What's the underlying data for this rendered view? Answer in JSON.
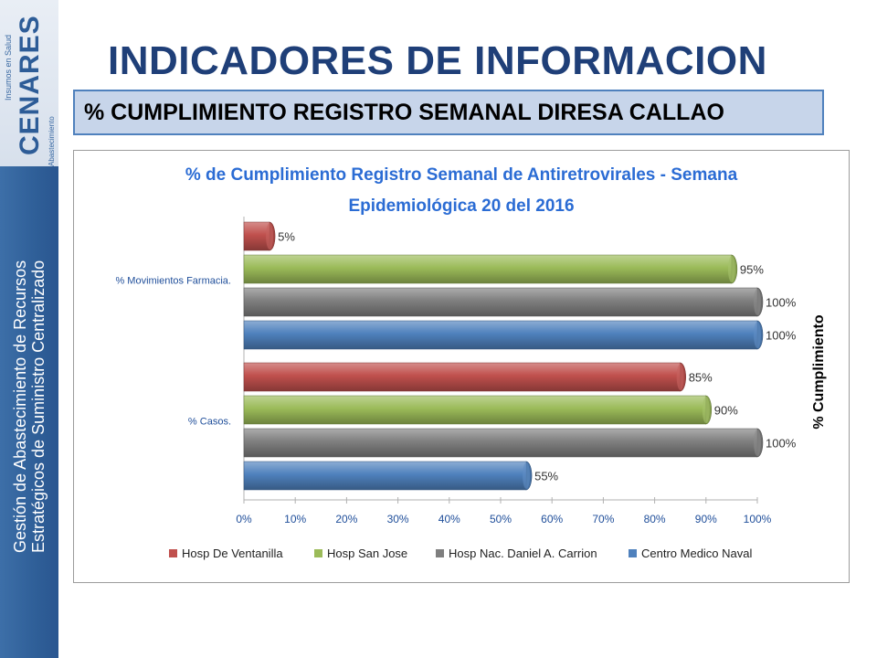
{
  "header": {
    "title": "INDICADORES DE INFORMACION",
    "subtitle": "% CUMPLIMIENTO REGISTRO SEMANAL DIRESA CALLAO"
  },
  "sidebar": {
    "logo_text": "CENARES",
    "logo_top_text": "Insumos en Salud",
    "logo_bottom_text": "Abastecimiento",
    "line1": "Gestión de Abastecimiento de Recursos",
    "line2": "Estratégicos de Suministro Centralizado"
  },
  "chart_data": {
    "type": "bar",
    "orientation": "horizontal",
    "title_line1": "% de Cumplimiento Registro Semanal de Antiretrovirales - Semana",
    "title_line2": "Epidemiológica 20 del 2016",
    "xlabel": "",
    "ylabel": "% Cumplimiento",
    "xlim": [
      0,
      100
    ],
    "x_ticks": [
      "0%",
      "10%",
      "20%",
      "30%",
      "40%",
      "50%",
      "60%",
      "70%",
      "80%",
      "90%",
      "100%"
    ],
    "categories": [
      "% Movimientos Farmacia.",
      "% Casos."
    ],
    "series": [
      {
        "name": "Hosp De Ventanilla",
        "values": [
          5,
          85
        ],
        "labels": [
          "5%",
          "85%"
        ],
        "color": "#c0504d"
      },
      {
        "name": "Hosp San Jose",
        "values": [
          95,
          90
        ],
        "labels": [
          "95%",
          "90%"
        ],
        "color": "#9bbb59"
      },
      {
        "name": "Hosp Nac. Daniel A. Carrion",
        "values": [
          100,
          100
        ],
        "labels": [
          "100%",
          "100%"
        ],
        "color": "#7f7f7f"
      },
      {
        "name": "Centro Medico Naval",
        "values": [
          100,
          55
        ],
        "labels": [
          "100%",
          "55%"
        ],
        "color": "#4f81bd"
      }
    ],
    "legend_position": "bottom",
    "title_color": "#2b6cd4",
    "tick_color": "#1f4e9a"
  }
}
